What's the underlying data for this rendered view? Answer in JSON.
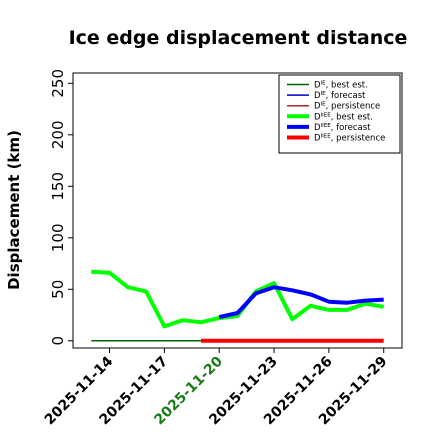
{
  "chart_data": {
    "type": "line",
    "title": "Ice edge displacement distance",
    "xlabel": "",
    "ylabel": "Displacement (km)",
    "ylim": [
      -7,
      260
    ],
    "yticks": [
      0,
      50,
      100,
      150,
      200,
      250
    ],
    "xlim": [
      "2025-11-12",
      "2025-11-30"
    ],
    "xticks": [
      {
        "date": "2025-11-14",
        "label": "2025-11-14",
        "color": "#000000"
      },
      {
        "date": "2025-11-17",
        "label": "2025-11-17",
        "color": "#000000"
      },
      {
        "date": "2025-11-20",
        "label": "2025-11-20",
        "color": "#1a7a1a"
      },
      {
        "date": "2025-11-23",
        "label": "2025-11-23",
        "color": "#000000"
      },
      {
        "date": "2025-11-26",
        "label": "2025-11-26",
        "color": "#000000"
      },
      {
        "date": "2025-11-29",
        "label": "2025-11-29",
        "color": "#000000"
      }
    ],
    "grid": false,
    "legend_position": "top-right",
    "series": [
      {
        "key": "ie_best",
        "legend_main": "D",
        "legend_sup": "IE",
        "legend_rest": ", best est.",
        "color": "#006400",
        "width": 1.5,
        "x": [
          "2025-11-13",
          "2025-11-14",
          "2025-11-15",
          "2025-11-16",
          "2025-11-17",
          "2025-11-18",
          "2025-11-19"
        ],
        "y": [
          0,
          0,
          0,
          0,
          0,
          0,
          0
        ]
      },
      {
        "key": "ie_forecast",
        "legend_main": "D",
        "legend_sup": "IE",
        "legend_rest": ", forecast",
        "color": "#0000cd",
        "width": 1.5,
        "x": [],
        "y": []
      },
      {
        "key": "ie_persistence",
        "legend_main": "D",
        "legend_sup": "IE",
        "legend_rest": ", persistence",
        "color": "#b22222",
        "width": 1.5,
        "x": [],
        "y": []
      },
      {
        "key": "iiee_best",
        "legend_main": "D",
        "legend_sup": "IIEE",
        "legend_rest": ", best est.",
        "color": "#00ff00",
        "width": 4,
        "x": [
          "2025-11-13",
          "2025-11-14",
          "2025-11-15",
          "2025-11-16",
          "2025-11-17",
          "2025-11-18",
          "2025-11-19",
          "2025-11-20",
          "2025-11-21",
          "2025-11-22",
          "2025-11-23",
          "2025-11-24",
          "2025-11-25",
          "2025-11-26",
          "2025-11-27",
          "2025-11-28",
          "2025-11-29"
        ],
        "y": [
          67,
          66,
          52,
          48,
          14,
          20,
          18,
          22,
          24,
          48,
          56,
          21,
          34,
          30,
          30,
          36,
          33
        ]
      },
      {
        "key": "iiee_forecast",
        "legend_main": "D",
        "legend_sup": "IIEE",
        "legend_rest": ", forecast",
        "color": "#0000ff",
        "width": 4,
        "x": [
          "2025-11-20",
          "2025-11-21",
          "2025-11-22",
          "2025-11-23",
          "2025-11-24",
          "2025-11-25",
          "2025-11-26",
          "2025-11-27",
          "2025-11-28",
          "2025-11-29"
        ],
        "y": [
          23,
          27,
          46,
          52,
          49,
          45,
          38,
          37,
          39,
          40
        ]
      },
      {
        "key": "iiee_persistence",
        "legend_main": "D",
        "legend_sup": "IIEE",
        "legend_rest": ", persistence",
        "color": "#ff0000",
        "width": 4,
        "x": [
          "2025-11-19",
          "2025-11-29"
        ],
        "y": [
          0,
          0
        ]
      }
    ]
  }
}
